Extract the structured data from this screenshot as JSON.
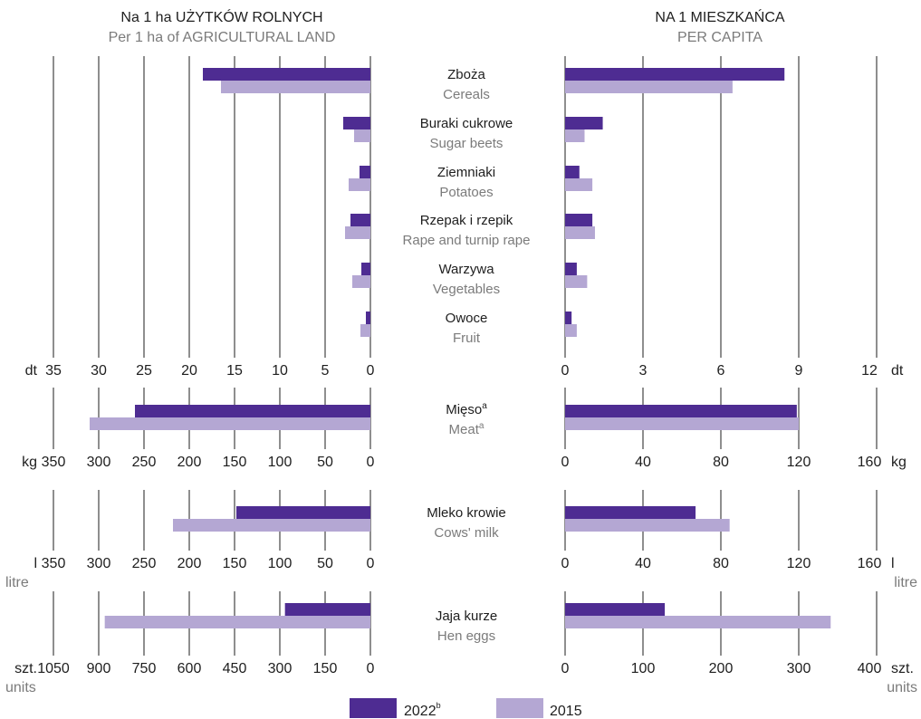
{
  "colors": {
    "series_2022": "#4e2c92",
    "series_2015": "#b4a7d3",
    "grid": "#1e1e1e",
    "label_main": "#1e1e1e",
    "label_sub": "#7b7b7b"
  },
  "headers": {
    "left_pl": "Na 1 ha UŻYTKÓW ROLNYCH",
    "left_en": "Per 1 ha of AGRICULTURAL LAND",
    "right_pl": "NA 1 MIESZKAŃCA",
    "right_en": "PER CAPITA"
  },
  "legend": {
    "s2022_label": "2022",
    "s2022_sup": "b",
    "s2015_label": "2015"
  },
  "chart_data": [
    {
      "type": "bar",
      "group": "crops",
      "orientation": "horizontal-butterfly",
      "categories": [
        {
          "pl": "Zboża",
          "en": "Cereals"
        },
        {
          "pl": "Buraki cukrowe",
          "en": "Sugar beets"
        },
        {
          "pl": "Ziemniaki",
          "en": "Potatoes"
        },
        {
          "pl": "Rzepak i rzepik",
          "en": "Rape and turnip rape"
        },
        {
          "pl": "Warzywa",
          "en": "Vegetables"
        },
        {
          "pl": "Owoce",
          "en": "Fruit"
        }
      ],
      "left": {
        "unit": "dt",
        "xlim": [
          0,
          35
        ],
        "ticks": [
          35,
          30,
          25,
          20,
          15,
          10,
          5,
          0
        ],
        "series": [
          {
            "name": "2022",
            "values": [
              18.5,
              3.0,
              1.2,
              2.2,
              1.0,
              0.5
            ]
          },
          {
            "name": "2015",
            "values": [
              16.5,
              1.8,
              2.4,
              2.8,
              2.0,
              1.1
            ]
          }
        ]
      },
      "right": {
        "unit": "dt",
        "xlim": [
          0,
          12
        ],
        "ticks": [
          0,
          3,
          6,
          9,
          12
        ],
        "series": [
          {
            "name": "2022",
            "values": [
              8.45,
              1.45,
              0.55,
              1.05,
              0.45,
              0.25
            ]
          },
          {
            "name": "2015",
            "values": [
              6.45,
              0.75,
              1.05,
              1.15,
              0.85,
              0.45
            ]
          }
        ]
      },
      "tick_labels": {
        "left_unit": "dt",
        "right_unit": "dt",
        "left": [
          "35",
          "30",
          "25",
          "20",
          "15",
          "10",
          "5",
          "0"
        ],
        "right": [
          "0",
          "3",
          "6",
          "9",
          "12"
        ]
      }
    },
    {
      "type": "bar",
      "group": "meat",
      "orientation": "horizontal-butterfly",
      "categories": [
        {
          "pl": "Mięso",
          "pl_sup": "a",
          "en": "Meat",
          "en_sup": "a"
        }
      ],
      "left": {
        "unit": "kg",
        "xlim": [
          0,
          350
        ],
        "ticks": [
          350,
          300,
          250,
          200,
          150,
          100,
          50,
          0
        ],
        "series": [
          {
            "name": "2022",
            "values": [
              260
            ]
          },
          {
            "name": "2015",
            "values": [
              310
            ]
          }
        ]
      },
      "right": {
        "unit": "kg",
        "xlim": [
          0,
          160
        ],
        "ticks": [
          0,
          40,
          80,
          120,
          160
        ],
        "series": [
          {
            "name": "2022",
            "values": [
              119
            ]
          },
          {
            "name": "2015",
            "values": [
              120
            ]
          }
        ]
      },
      "tick_labels": {
        "left_unit": "kg",
        "right_unit": "kg",
        "left": [
          "350",
          "300",
          "250",
          "200",
          "150",
          "100",
          "50",
          "0"
        ],
        "right": [
          "0",
          "40",
          "80",
          "120",
          "160"
        ]
      }
    },
    {
      "type": "bar",
      "group": "milk",
      "orientation": "horizontal-butterfly",
      "categories": [
        {
          "pl": "Mleko krowie",
          "en": "Cows' milk"
        }
      ],
      "left": {
        "unit": "l",
        "xlim": [
          0,
          350
        ],
        "ticks": [
          350,
          300,
          250,
          200,
          150,
          100,
          50,
          0
        ],
        "series": [
          {
            "name": "2022",
            "values": [
              148
            ]
          },
          {
            "name": "2015",
            "values": [
              218
            ]
          }
        ]
      },
      "right": {
        "unit": "l",
        "xlim": [
          0,
          160
        ],
        "ticks": [
          0,
          40,
          80,
          120,
          160
        ],
        "series": [
          {
            "name": "2022",
            "values": [
              67
            ]
          },
          {
            "name": "2015",
            "values": [
              84.5
            ]
          }
        ]
      },
      "tick_labels": {
        "left_unit": "l",
        "right_unit": "l",
        "unit_en": "litre",
        "left": [
          "350",
          "300",
          "250",
          "200",
          "150",
          "100",
          "50",
          "0"
        ],
        "right": [
          "0",
          "40",
          "80",
          "120",
          "160"
        ]
      }
    },
    {
      "type": "bar",
      "group": "eggs",
      "orientation": "horizontal-butterfly",
      "categories": [
        {
          "pl": "Jaja kurze",
          "en": "Hen eggs"
        }
      ],
      "left": {
        "unit": "szt.",
        "xlim": [
          0,
          1050
        ],
        "ticks": [
          1050,
          900,
          750,
          600,
          450,
          300,
          150,
          0
        ],
        "series": [
          {
            "name": "2022",
            "values": [
              283
            ]
          },
          {
            "name": "2015",
            "values": [
              880
            ]
          }
        ]
      },
      "right": {
        "unit": "szt.",
        "xlim": [
          0,
          400
        ],
        "ticks": [
          0,
          100,
          200,
          300,
          400
        ],
        "series": [
          {
            "name": "2022",
            "values": [
              128
            ]
          },
          {
            "name": "2015",
            "values": [
              341
            ]
          }
        ]
      },
      "tick_labels": {
        "left_unit": "szt.",
        "right_unit": "szt.",
        "unit_en": "units",
        "left": [
          "1050",
          "900",
          "750",
          "600",
          "450",
          "300",
          "150",
          "0"
        ],
        "right": [
          "0",
          "100",
          "200",
          "300",
          "400"
        ]
      }
    }
  ]
}
